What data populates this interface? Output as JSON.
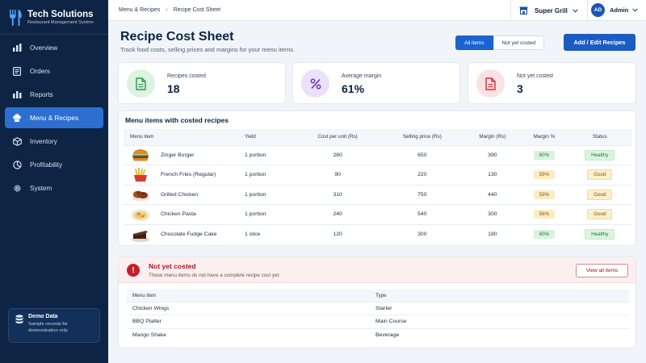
{
  "brand": {
    "name": "Tech Solutions",
    "subtitle": "Restaurant Management System"
  },
  "nav": [
    {
      "label": "Overview",
      "icon": "bar-chart-icon"
    },
    {
      "label": "Orders",
      "icon": "orders-icon"
    },
    {
      "label": "Reports",
      "icon": "reports-icon"
    },
    {
      "label": "Menu & Recipes",
      "icon": "chef-hat-icon",
      "active": true
    },
    {
      "label": "Inventory",
      "icon": "box-icon"
    },
    {
      "label": "Profitability",
      "icon": "pie-chart-icon"
    },
    {
      "label": "System",
      "icon": "gear-icon"
    }
  ],
  "demo": {
    "title": "Demo Data",
    "text": "Sample records for demonstration only"
  },
  "breadcrumb": {
    "parent": "Menu & Recipes",
    "current": "Recipe Cost Sheet"
  },
  "store": {
    "name": "Super Grill"
  },
  "user": {
    "initials": "AD",
    "name": "Admin"
  },
  "header": {
    "title": "Recipe Cost Sheet",
    "subtitle": "Track food costs, selling prices and margins for your menu items.",
    "filter_all": "All items",
    "filter_not_costed": "Not yet costed",
    "primary_button": "Add / Edit Recipes"
  },
  "stats": [
    {
      "label": "Recipes costed",
      "value": "18"
    },
    {
      "label": "Average margin",
      "value": "61%"
    },
    {
      "label": "Not yet costed",
      "value": "3"
    }
  ],
  "costed": {
    "title": "Menu items with costed recipes",
    "columns": [
      "Menu item",
      "Yield",
      "Cost per unit (Rs)",
      "Selling price (Rs)",
      "Margin (Rs)",
      "Margin %",
      "Status"
    ],
    "rows": [
      {
        "item": "Zinger Burger",
        "yield": "1 portion",
        "cost": "260",
        "price": "650",
        "margin": "390",
        "margin_pct": "60%",
        "status": "Healthy"
      },
      {
        "item": "French Fries (Regular)",
        "yield": "1 portion",
        "cost": "90",
        "price": "220",
        "margin": "130",
        "margin_pct": "59%",
        "status": "Good"
      },
      {
        "item": "Grilled Chicken",
        "yield": "1 portion",
        "cost": "310",
        "price": "750",
        "margin": "440",
        "margin_pct": "59%",
        "status": "Good"
      },
      {
        "item": "Chicken Pasta",
        "yield": "1 portion",
        "cost": "240",
        "price": "540",
        "margin": "300",
        "margin_pct": "56%",
        "status": "Good"
      },
      {
        "item": "Chocolate Fudge Cake",
        "yield": "1 slice",
        "cost": "120",
        "price": "300",
        "margin": "180",
        "margin_pct": "60%",
        "status": "Healthy"
      }
    ]
  },
  "not_costed": {
    "title": "Not yet costed",
    "subtitle": "These menu items do not have a complete recipe cost yet.",
    "view_all": "View all items",
    "columns": [
      "Menu item",
      "Type"
    ],
    "rows": [
      {
        "item": "Chicken Wings",
        "type": "Starter"
      },
      {
        "item": "BBQ Platter",
        "type": "Main Course"
      },
      {
        "item": "Mango Shake",
        "type": "Beverage"
      }
    ]
  },
  "colors": {
    "sidebar": "#0d2444",
    "accent": "#1d5bc4",
    "healthy": "#217a3b",
    "good": "#8a5a06",
    "warning": "#c4202c"
  }
}
